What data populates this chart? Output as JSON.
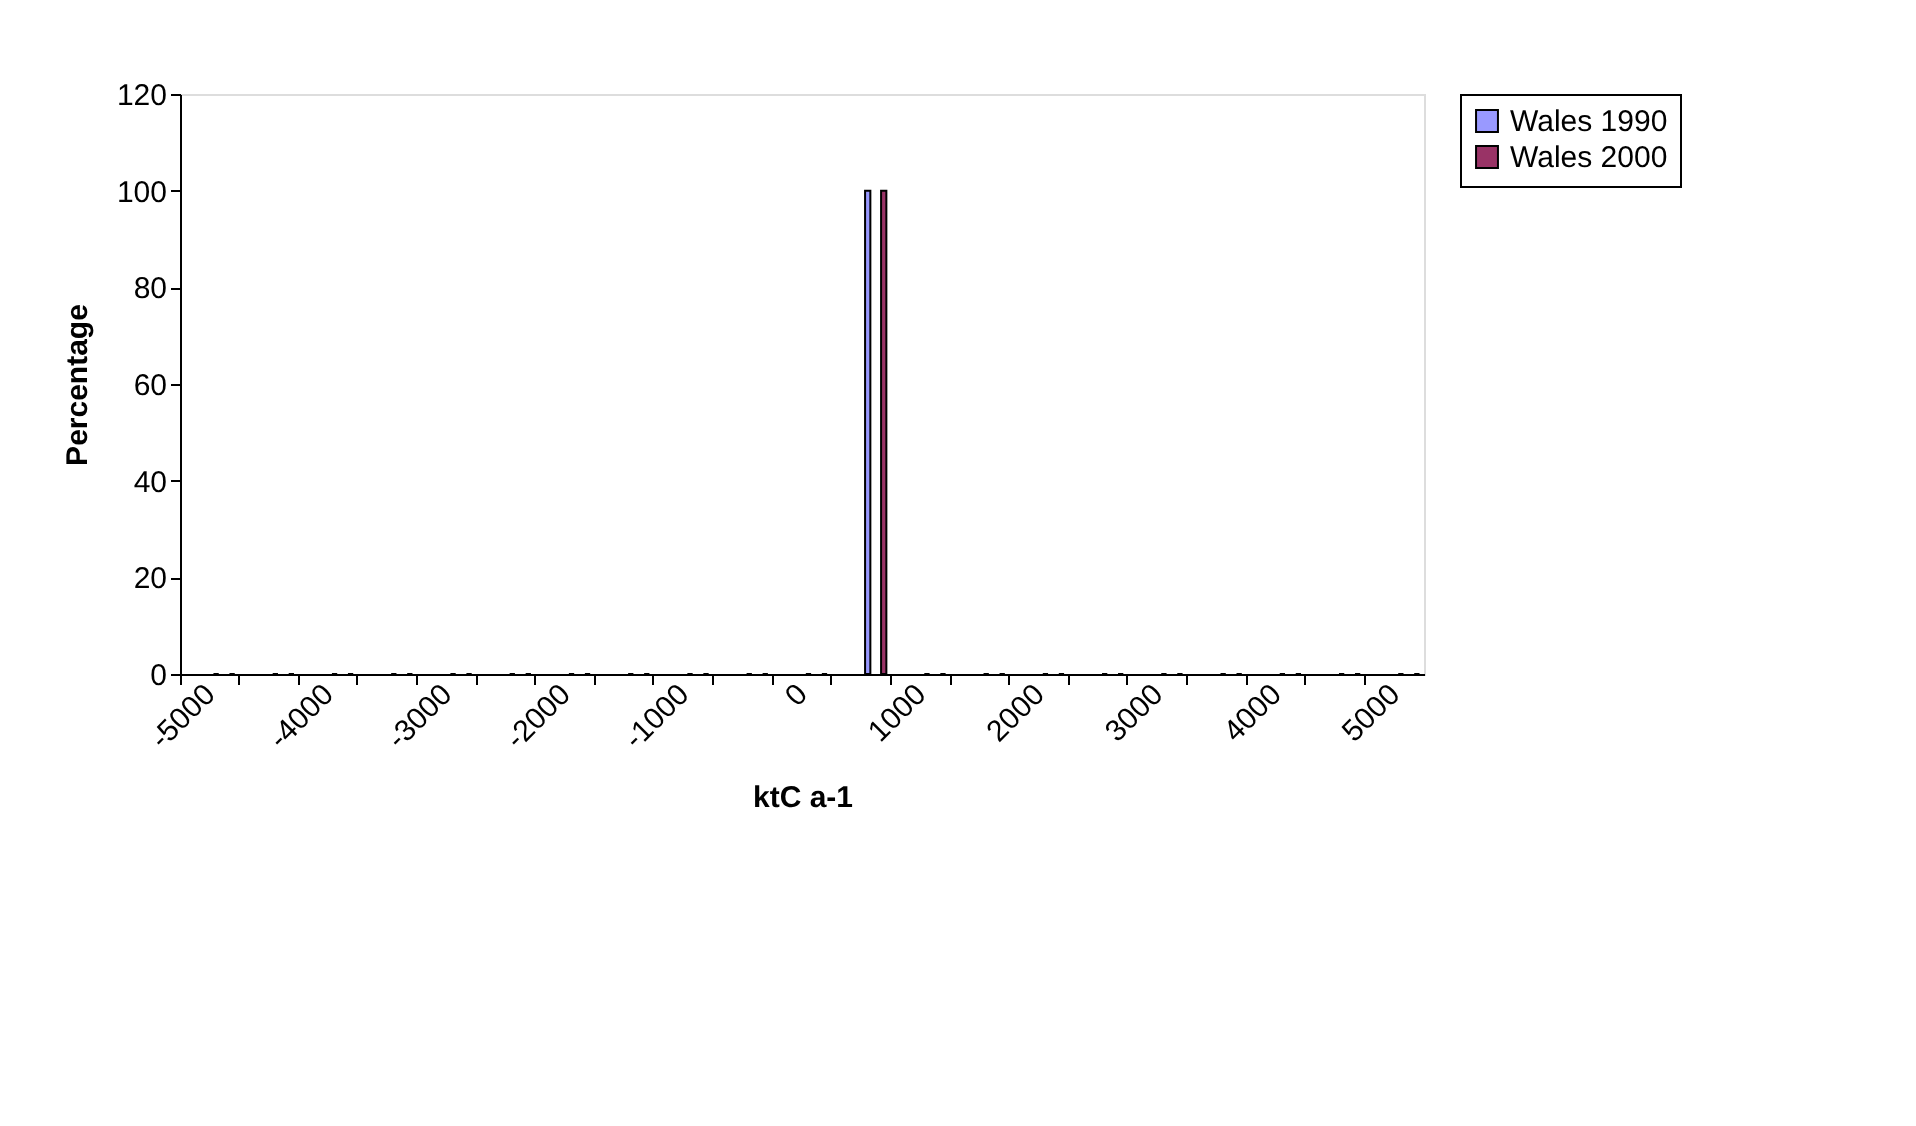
{
  "chart_data": {
    "type": "bar",
    "xlabel": "ktC a-1",
    "ylabel": "Percentage",
    "categories": [
      "-5000",
      null,
      "-4000",
      null,
      "-3000",
      null,
      "-2000",
      null,
      "-1000",
      null,
      "0",
      null,
      "1000",
      null,
      "2000",
      null,
      "3000",
      null,
      "4000",
      null,
      "5000"
    ],
    "series": [
      {
        "name": "Wales 1990",
        "color": "#9999ff",
        "values": [
          0,
          0,
          0,
          0,
          0,
          0,
          0,
          0,
          0,
          0,
          0,
          100,
          0,
          0,
          0,
          0,
          0,
          0,
          0,
          0,
          0
        ]
      },
      {
        "name": "Wales 2000",
        "color": "#993366",
        "values": [
          0,
          0,
          0,
          0,
          0,
          0,
          0,
          0,
          0,
          0,
          0,
          100,
          0,
          0,
          0,
          0,
          0,
          0,
          0,
          0,
          0
        ]
      }
    ],
    "ylim": [
      0,
      120
    ],
    "yticks": [
      0,
      20,
      40,
      60,
      80,
      100,
      120
    ],
    "grid": false,
    "legend": "right"
  }
}
